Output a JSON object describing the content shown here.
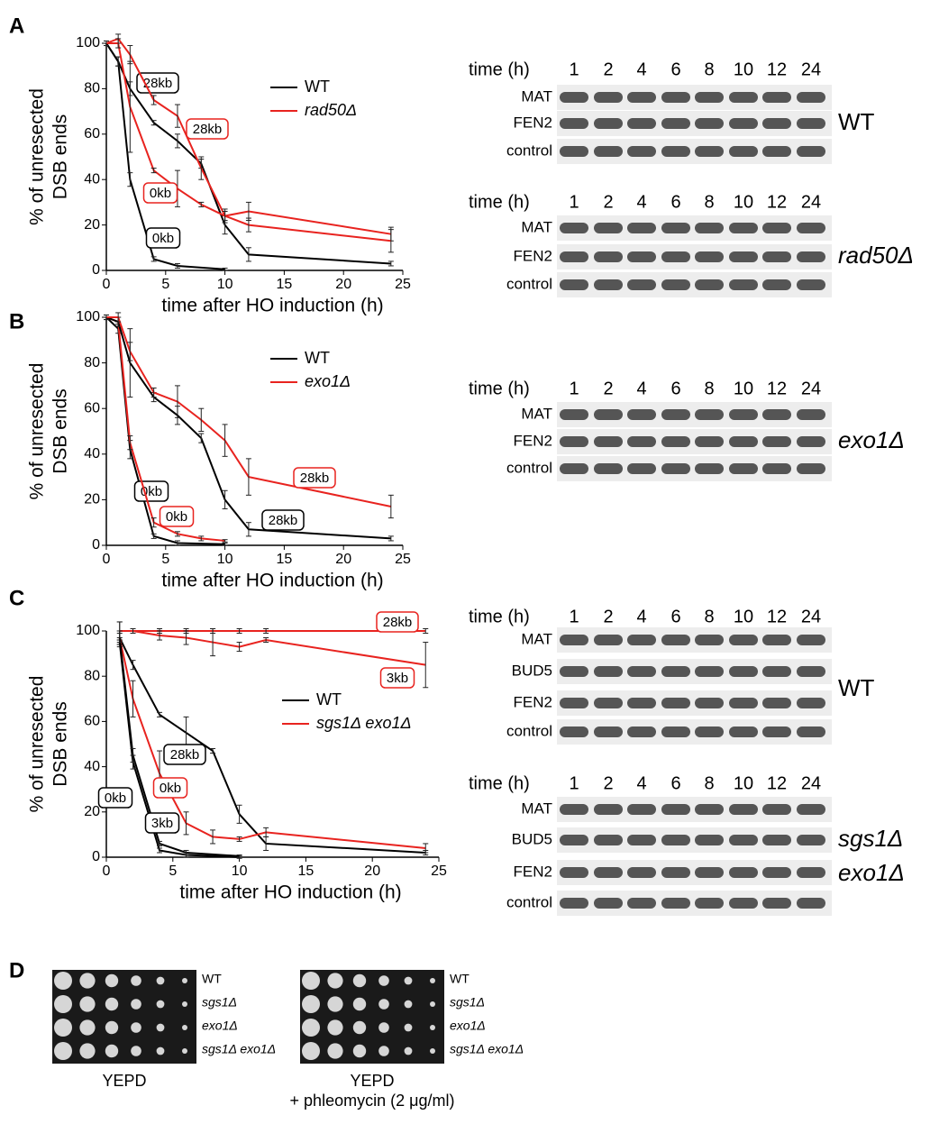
{
  "chart_data": [
    {
      "type": "line",
      "panel": "A",
      "xlabel": "time after HO induction (h)",
      "ylabel": [
        "% of unresected",
        "DSB ends"
      ],
      "xlim": [
        0,
        25
      ],
      "xticks": [
        0,
        5,
        10,
        15,
        20,
        25
      ],
      "ylim": [
        0,
        100
      ],
      "yticks": [
        0,
        20,
        40,
        60,
        80,
        100
      ],
      "legend": [
        {
          "name": "WT",
          "color": "#000000"
        },
        {
          "name": "rad50Δ",
          "color": "#e8231f"
        }
      ],
      "series": [
        {
          "name": "28kb",
          "color": "#000000",
          "x": [
            0,
            1,
            2,
            4,
            6,
            8,
            10,
            12,
            24
          ],
          "values": [
            100,
            92,
            80,
            65,
            57,
            47,
            20,
            7,
            3
          ],
          "errors": [
            1,
            2,
            3,
            1,
            3,
            2,
            4,
            3,
            1
          ]
        },
        {
          "name": "0kb",
          "color": "#000000",
          "x": [
            0,
            1,
            2,
            4,
            6,
            10
          ],
          "values": [
            100,
            92,
            40,
            5,
            2,
            0.5
          ],
          "errors": [
            1,
            2,
            3,
            1,
            1,
            0.5
          ]
        },
        {
          "name": "28kb",
          "color": "#e8231f",
          "x": [
            0,
            1,
            2,
            4,
            6,
            8,
            10,
            12,
            24
          ],
          "values": [
            100,
            102,
            95,
            75,
            68,
            45,
            24,
            26,
            16
          ],
          "errors": [
            1,
            2,
            4,
            2,
            5,
            5,
            2,
            4,
            3
          ]
        },
        {
          "name": "0kb",
          "color": "#e8231f",
          "x": [
            0,
            1,
            2,
            4,
            6,
            8,
            10,
            12,
            24
          ],
          "values": [
            100,
            100,
            72,
            44,
            36,
            29,
            24,
            20,
            13
          ],
          "errors": [
            1,
            2,
            20,
            1,
            8,
            1,
            3,
            3,
            5
          ]
        }
      ]
    },
    {
      "type": "line",
      "panel": "B",
      "xlabel": "time after HO induction (h)",
      "ylabel": [
        "% of unresected",
        "DSB ends"
      ],
      "xlim": [
        0,
        25
      ],
      "xticks": [
        0,
        5,
        10,
        15,
        20,
        25
      ],
      "ylim": [
        0,
        100
      ],
      "yticks": [
        0,
        20,
        40,
        60,
        80,
        100
      ],
      "legend": [
        {
          "name": "WT",
          "color": "#000000"
        },
        {
          "name": "exo1Δ",
          "color": "#e8231f"
        }
      ],
      "series": [
        {
          "name": "0kb",
          "color": "#000000",
          "x": [
            0,
            1,
            2,
            4,
            6,
            10
          ],
          "values": [
            100,
            95,
            42,
            4,
            1,
            0.5
          ],
          "errors": [
            1,
            2,
            4,
            1,
            1,
            0.5
          ]
        },
        {
          "name": "0kb",
          "color": "#e8231f",
          "x": [
            0,
            1,
            2,
            4,
            6,
            8,
            10
          ],
          "values": [
            100,
            98,
            45,
            10,
            5,
            3,
            2
          ],
          "errors": [
            1,
            2,
            3,
            2,
            1,
            1,
            0.5
          ]
        },
        {
          "name": "28kb",
          "color": "#000000",
          "x": [
            0,
            1,
            2,
            4,
            6,
            8,
            10,
            12,
            24
          ],
          "values": [
            100,
            98,
            80,
            65,
            57,
            47,
            20,
            7,
            3
          ],
          "errors": [
            1,
            2,
            15,
            2,
            4,
            2,
            4,
            3,
            1
          ]
        },
        {
          "name": "28kb",
          "color": "#e8231f",
          "x": [
            0,
            1,
            2,
            4,
            6,
            8,
            10,
            12,
            24
          ],
          "values": [
            100,
            100,
            85,
            67,
            63,
            55,
            46,
            30,
            17
          ],
          "errors": [
            1,
            2,
            4,
            2,
            7,
            5,
            7,
            8,
            5
          ]
        }
      ]
    },
    {
      "type": "line",
      "panel": "C",
      "xlabel": "time after HO induction (h)",
      "ylabel": [
        "% of unresected",
        "DSB ends"
      ],
      "xlim": [
        0,
        25
      ],
      "xticks": [
        0,
        5,
        10,
        15,
        20,
        25
      ],
      "ylim": [
        0,
        100
      ],
      "yticks": [
        0,
        20,
        40,
        60,
        80,
        100
      ],
      "legend": [
        {
          "name": "WT",
          "color": "#000000"
        },
        {
          "name": "sgs1Δ exo1Δ",
          "color": "#e8231f"
        }
      ],
      "series": [
        {
          "name": "28kb",
          "color": "#000000",
          "x": [
            1,
            2,
            4,
            6,
            8,
            10,
            12,
            24
          ],
          "values": [
            97,
            85,
            63,
            55,
            47,
            19,
            6,
            2
          ],
          "errors": [
            3,
            2,
            1,
            7,
            1,
            4,
            3,
            1
          ]
        },
        {
          "name": "28kb",
          "color": "#e8231f",
          "x": [
            1,
            2,
            4,
            6,
            8,
            10,
            12,
            24
          ],
          "values": [
            100,
            100,
            100,
            100,
            100,
            100,
            100,
            100
          ],
          "errors": [
            4,
            1,
            1,
            1,
            1,
            1,
            1,
            1
          ]
        },
        {
          "name": "3kb",
          "color": "#e8231f",
          "x": [
            1,
            2,
            4,
            6,
            8,
            10,
            12,
            24
          ],
          "values": [
            100,
            100,
            98,
            97,
            95,
            93,
            96,
            85
          ],
          "errors": [
            4,
            1,
            2,
            3,
            6,
            2,
            1,
            10
          ]
        },
        {
          "name": "0kb",
          "color": "#e8231f",
          "x": [
            1,
            2,
            4,
            6,
            8,
            10,
            12,
            24
          ],
          "values": [
            97,
            70,
            37,
            15,
            9,
            8,
            11,
            4
          ],
          "errors": [
            3,
            8,
            10,
            5,
            3,
            1,
            2,
            2
          ]
        },
        {
          "name": "0kb",
          "color": "#000000",
          "x": [
            1,
            2,
            4,
            6,
            10
          ],
          "values": [
            95,
            42,
            3,
            1,
            0
          ],
          "errors": [
            2,
            3,
            1,
            1,
            0.5
          ]
        },
        {
          "name": "3kb",
          "color": "#000000",
          "x": [
            1,
            2,
            4,
            6,
            10
          ],
          "values": [
            97,
            45,
            6,
            2,
            0.5
          ],
          "errors": [
            2,
            3,
            1,
            1,
            0.5
          ]
        }
      ]
    }
  ],
  "gels": [
    {
      "time_label": "time (h)",
      "times": [
        "1",
        "2",
        "4",
        "6",
        "8",
        "10",
        "12",
        "24"
      ],
      "rows": [
        "MAT",
        "FEN2",
        "control"
      ],
      "genotype": [
        "WT"
      ]
    },
    {
      "time_label": "time (h)",
      "times": [
        "1",
        "2",
        "4",
        "6",
        "8",
        "10",
        "12",
        "24"
      ],
      "rows": [
        "MAT",
        "FEN2",
        "control"
      ],
      "genotype": [
        "rad50Δ"
      ]
    },
    {
      "time_label": "time (h)",
      "times": [
        "1",
        "2",
        "4",
        "6",
        "8",
        "10",
        "12",
        "24"
      ],
      "rows": [
        "MAT",
        "FEN2",
        "control"
      ],
      "genotype": [
        "exo1Δ"
      ]
    },
    {
      "time_label": "time (h)",
      "times": [
        "1",
        "2",
        "4",
        "6",
        "8",
        "10",
        "12",
        "24"
      ],
      "rows": [
        "MAT",
        "BUD5",
        "FEN2",
        "control"
      ],
      "genotype": [
        "WT"
      ]
    },
    {
      "time_label": "time (h)",
      "times": [
        "1",
        "2",
        "4",
        "6",
        "8",
        "10",
        "12",
        "24"
      ],
      "rows": [
        "MAT",
        "BUD5",
        "FEN2",
        "control"
      ],
      "genotype": [
        "sgs1Δ",
        "exo1Δ"
      ]
    }
  ],
  "spot_assay": {
    "panel": "D",
    "strains": [
      "WT",
      "sgs1Δ",
      "exo1Δ",
      "sgs1Δ exo1Δ"
    ],
    "plates": [
      [
        "YEPD"
      ],
      [
        "YEPD",
        "+ phleomycin (2 μg/ml)"
      ]
    ]
  }
}
